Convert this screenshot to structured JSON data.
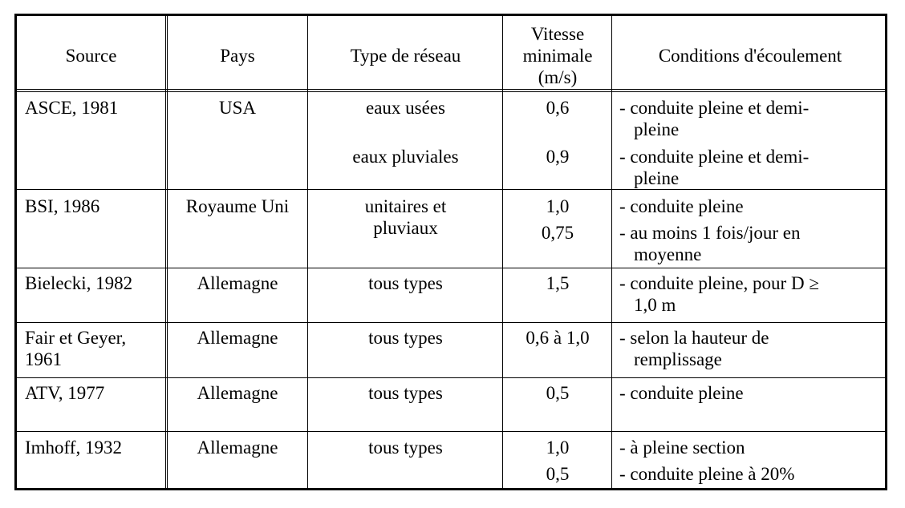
{
  "headers": {
    "source": "Source",
    "pays": "Pays",
    "type": "Type de réseau",
    "vitesse_1": "Vitesse",
    "vitesse_2": "minimale",
    "vitesse_3": "(m/s)",
    "conditions": "Conditions d'écoulement"
  },
  "rows": [
    {
      "source": "ASCE, 1981",
      "pays": "USA",
      "entries": [
        {
          "type": "eaux usées",
          "vitesse": "0,6",
          "condition_1": "- conduite pleine et demi-",
          "condition_2": "pleine"
        },
        {
          "type": "eaux pluviales",
          "vitesse": "0,9",
          "condition_1": "- conduite pleine et demi-",
          "condition_2": "pleine"
        }
      ]
    },
    {
      "source": "BSI, 1986",
      "pays": "Royaume Uni",
      "type_1": "unitaires et",
      "type_2": "pluviaux",
      "entries": [
        {
          "vitesse": "1,0",
          "condition_1": "- conduite pleine"
        },
        {
          "vitesse": "0,75",
          "condition_1": "- au moins 1 fois/jour en",
          "condition_2": "moyenne"
        }
      ]
    },
    {
      "source": "Bielecki, 1982",
      "pays": "Allemagne",
      "type": "tous types",
      "vitesse": "1,5",
      "condition_1": "- conduite pleine, pour D ≥",
      "condition_2": "1,0 m"
    },
    {
      "source_1": "Fair et Geyer,",
      "source_2": "1961",
      "pays": "Allemagne",
      "type": "tous types",
      "vitesse": "0,6 à 1,0",
      "condition_1": "- selon la hauteur de",
      "condition_2": "remplissage"
    },
    {
      "source": "ATV, 1977",
      "pays": "Allemagne",
      "type": "tous types",
      "vitesse": "0,5",
      "condition_1": "- conduite pleine"
    },
    {
      "source": "Imhoff, 1932",
      "pays": "Allemagne",
      "type": "tous types",
      "entries": [
        {
          "vitesse": "1,0",
          "condition_1": "- à pleine section"
        },
        {
          "vitesse": "0,5",
          "condition_1": "- conduite pleine à 20%"
        }
      ]
    }
  ]
}
